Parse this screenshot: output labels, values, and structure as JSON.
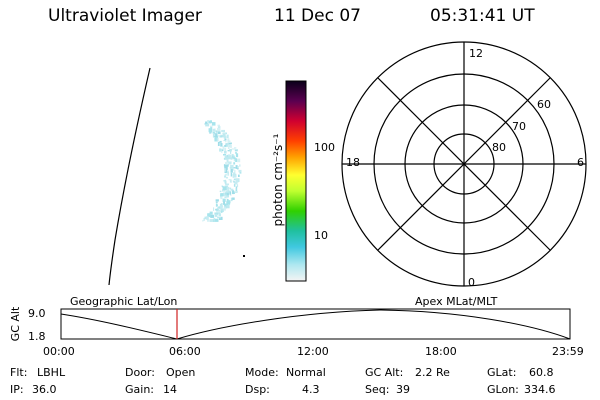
{
  "header": {
    "instrument": "Ultraviolet Imager",
    "date": "11 Dec 07",
    "time": "05:31:41 UT"
  },
  "colorbar": {
    "unit_label": "photon cm⁻²s⁻¹",
    "tick_labels": [
      "100",
      "10"
    ]
  },
  "polar_plot": {
    "mlt_labels": {
      "top": "12",
      "left": "18",
      "right": "6",
      "bottom": "0"
    },
    "lat_labels": [
      "60",
      "70",
      "80"
    ]
  },
  "altitude_plot": {
    "y_axis_label": "GC Alt",
    "y_ticks": [
      "9.0",
      "1.8"
    ],
    "left_coord_label": "Geographic Lat/Lon",
    "right_coord_label": "Apex MLat/MLT",
    "x_ticks": [
      "00:00",
      "06:00",
      "12:00",
      "18:00",
      "23:59"
    ]
  },
  "info_rows": [
    [
      {
        "key": "Flt:",
        "value": "LBHL"
      },
      {
        "key": "Door:",
        "value": "Open"
      },
      {
        "key": "Mode:",
        "value": "Normal"
      },
      {
        "key": "GC Alt:",
        "value": "2.2 Re"
      },
      {
        "key": "GLat:",
        "value": "60.8"
      }
    ],
    [
      {
        "key": "IP:",
        "value": "36.0"
      },
      {
        "key": "Gain:",
        "value": "14"
      },
      {
        "key": "Dsp:",
        "value": "4.3"
      },
      {
        "key": "Seq:",
        "value": "39"
      },
      {
        "key": "GLon:",
        "value": "334.6"
      }
    ]
  ]
}
